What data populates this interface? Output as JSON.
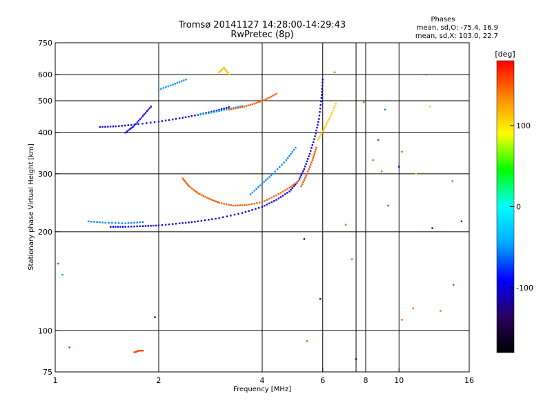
{
  "chart_data": {
    "type": "scatter",
    "title": "Tromsø 20141127 14:28:00-14:29:43",
    "subtitle": "RwPretec (8p)",
    "xlabel": "Frequency [MHz]",
    "ylabel": "Stationary phase Virtual Height [km]",
    "x_scale": "log",
    "y_scale": "log",
    "xlim": [
      1,
      16
    ],
    "ylim": [
      75,
      750
    ],
    "x_ticks": [
      1,
      2,
      4,
      6,
      8,
      10,
      16
    ],
    "x_tick_labels": [
      "1",
      "2",
      "4",
      "6",
      "8",
      "10",
      "16"
    ],
    "y_ticks": [
      75,
      100,
      200,
      300,
      400,
      500,
      600,
      750
    ],
    "y_tick_labels": [
      "75",
      "100",
      "200",
      "300",
      "400",
      "500",
      "600",
      "750"
    ],
    "x_gridlines": [
      2,
      4,
      6,
      7.5,
      8,
      10
    ],
    "y_gridlines": [
      100,
      200,
      300,
      400,
      500,
      600
    ],
    "grid": true,
    "phases_heading": "Phases",
    "phase_stats": [
      "mean, sd,O: -75.4, 16.9",
      "mean, sd,X: 103.0, 22.7"
    ],
    "colorbar": {
      "label": "[deg]",
      "range": [
        -180,
        180
      ],
      "ticks": [
        100,
        0,
        -100
      ],
      "tick_labels": [
        "100",
        "0",
        "-100"
      ],
      "colormap": [
        "#000000",
        "#2a0060",
        "#0000ff",
        "#00aaff",
        "#00ffff",
        "#00ff00",
        "#ffff00",
        "#ff8800",
        "#ff0000"
      ]
    },
    "traces": [
      {
        "phase": -95,
        "points": [
          [
            1.45,
            207
          ],
          [
            1.6,
            207
          ],
          [
            1.8,
            208
          ],
          [
            2.0,
            209
          ],
          [
            2.3,
            212
          ],
          [
            2.6,
            215
          ],
          [
            3.0,
            220
          ],
          [
            3.5,
            228
          ],
          [
            4.0,
            238
          ],
          [
            4.4,
            250
          ],
          [
            4.8,
            265
          ],
          [
            5.1,
            285
          ],
          [
            5.3,
            310
          ],
          [
            5.5,
            345
          ],
          [
            5.7,
            390
          ],
          [
            5.85,
            440
          ],
          [
            5.95,
            510
          ],
          [
            6.0,
            580
          ]
        ]
      },
      {
        "phase": -55,
        "points": [
          [
            1.25,
            215
          ],
          [
            1.4,
            213
          ],
          [
            1.6,
            212
          ],
          [
            1.8,
            214
          ]
        ]
      },
      {
        "phase": -95,
        "points": [
          [
            1.35,
            416
          ],
          [
            1.5,
            418
          ],
          [
            1.7,
            423
          ],
          [
            2.0,
            432
          ],
          [
            2.3,
            442
          ],
          [
            2.6,
            453
          ],
          [
            2.9,
            465
          ],
          [
            3.2,
            478
          ]
        ]
      },
      {
        "phase": -50,
        "points": [
          [
            2.6,
            452
          ],
          [
            2.9,
            462
          ],
          [
            3.2,
            472
          ],
          [
            3.5,
            482
          ]
        ]
      },
      {
        "phase": 150,
        "points": [
          [
            3.2,
            470
          ],
          [
            3.5,
            478
          ],
          [
            3.8,
            490
          ],
          [
            4.1,
            505
          ],
          [
            4.4,
            525
          ]
        ]
      },
      {
        "phase": 150,
        "points": [
          [
            2.35,
            290
          ],
          [
            2.45,
            275
          ],
          [
            2.6,
            262
          ],
          [
            2.8,
            252
          ],
          [
            3.0,
            245
          ],
          [
            3.3,
            240
          ],
          [
            3.6,
            241
          ],
          [
            4.0,
            246
          ],
          [
            4.4,
            258
          ],
          [
            4.8,
            272
          ],
          [
            5.1,
            285
          ]
        ]
      },
      {
        "phase": 155,
        "points": [
          [
            5.2,
            275
          ],
          [
            5.4,
            300
          ],
          [
            5.6,
            330
          ],
          [
            5.75,
            360
          ]
        ]
      },
      {
        "phase": 110,
        "points": [
          [
            5.8,
            380
          ],
          [
            6.05,
            410
          ],
          [
            6.3,
            445
          ],
          [
            6.55,
            490
          ]
        ]
      },
      {
        "phase": 155,
        "points": [
          [
            1.7,
            86
          ],
          [
            1.75,
            87
          ],
          [
            1.8,
            87
          ]
        ]
      },
      {
        "phase": -95,
        "points": [
          [
            1.6,
            400
          ],
          [
            1.7,
            420
          ],
          [
            1.8,
            450
          ],
          [
            1.9,
            480
          ]
        ]
      },
      {
        "phase": -50,
        "points": [
          [
            2.0,
            540
          ],
          [
            2.2,
            560
          ],
          [
            2.4,
            580
          ]
        ]
      },
      {
        "phase": 110,
        "points": [
          [
            3.0,
            610
          ],
          [
            3.1,
            630
          ],
          [
            3.2,
            600
          ]
        ]
      },
      {
        "phase": -55,
        "points": [
          [
            3.7,
            260
          ],
          [
            4.0,
            280
          ],
          [
            4.3,
            300
          ],
          [
            4.7,
            330
          ],
          [
            5.0,
            360
          ]
        ]
      }
    ],
    "scatter": [
      {
        "x": 1.02,
        "y": 160,
        "phase": -60
      },
      {
        "x": 1.05,
        "y": 148,
        "phase": -50
      },
      {
        "x": 1.1,
        "y": 89,
        "phase": -65
      },
      {
        "x": 1.95,
        "y": 110,
        "phase": -110
      },
      {
        "x": 5.3,
        "y": 190,
        "phase": -105
      },
      {
        "x": 5.4,
        "y": 93,
        "phase": 150
      },
      {
        "x": 5.9,
        "y": 125,
        "phase": -100
      },
      {
        "x": 7.3,
        "y": 165,
        "phase": 150
      },
      {
        "x": 7.5,
        "y": 82,
        "phase": -100
      },
      {
        "x": 8.4,
        "y": 330,
        "phase": 150
      },
      {
        "x": 8.9,
        "y": 305,
        "phase": 150
      },
      {
        "x": 9.3,
        "y": 240,
        "phase": -60
      },
      {
        "x": 10.0,
        "y": 315,
        "phase": -100
      },
      {
        "x": 10.2,
        "y": 350,
        "phase": 150
      },
      {
        "x": 11.2,
        "y": 300,
        "phase": 110
      },
      {
        "x": 12.0,
        "y": 600,
        "phase": 150
      },
      {
        "x": 12.3,
        "y": 480,
        "phase": 110
      },
      {
        "x": 12.5,
        "y": 205,
        "phase": -100
      },
      {
        "x": 13.2,
        "y": 115,
        "phase": 150
      },
      {
        "x": 14.4,
        "y": 138,
        "phase": -60
      },
      {
        "x": 15.2,
        "y": 215,
        "phase": -100
      },
      {
        "x": 14.3,
        "y": 285,
        "phase": 150
      },
      {
        "x": 11.0,
        "y": 117,
        "phase": 150
      },
      {
        "x": 10.2,
        "y": 108,
        "phase": 150
      },
      {
        "x": 7.0,
        "y": 210,
        "phase": 150
      },
      {
        "x": 6.5,
        "y": 610,
        "phase": 150
      },
      {
        "x": 7.9,
        "y": 495,
        "phase": 150
      },
      {
        "x": 9.1,
        "y": 470,
        "phase": -60
      },
      {
        "x": 8.7,
        "y": 380,
        "phase": -60
      }
    ]
  }
}
